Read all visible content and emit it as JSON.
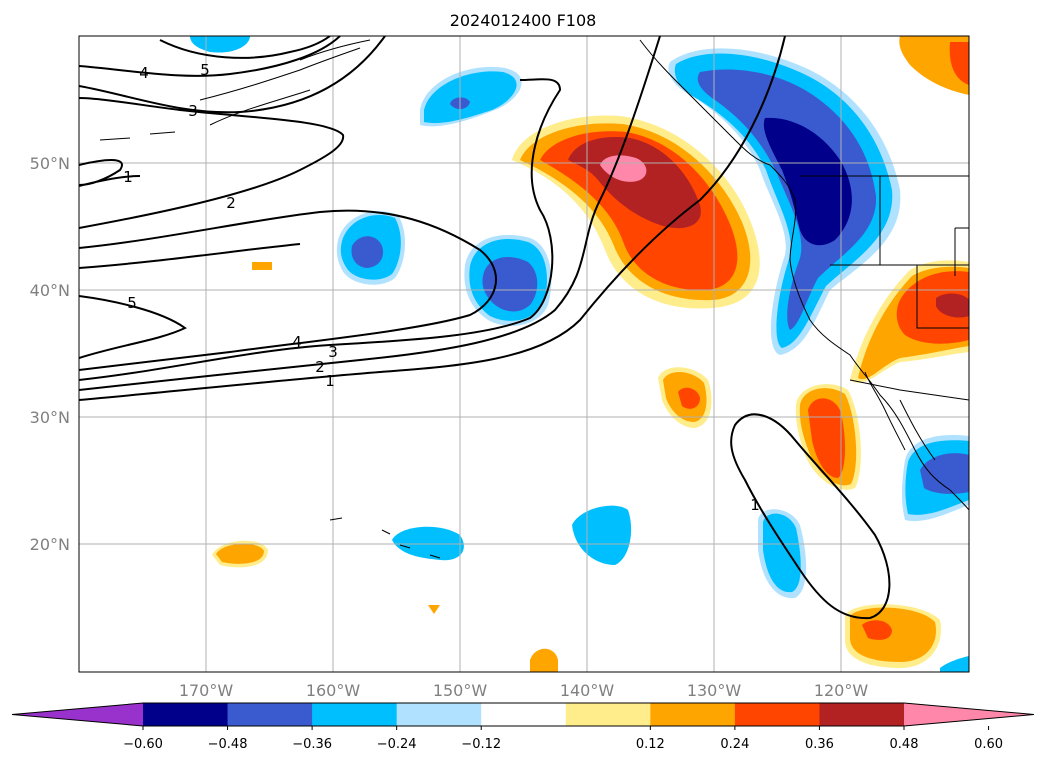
{
  "title": "2024012400 F108",
  "lon_labels": [
    "170°W",
    "160°W",
    "150°W",
    "140°W",
    "130°W",
    "120°W"
  ],
  "lat_labels": [
    "50°N",
    "40°N",
    "30°N",
    "20°N"
  ],
  "lon_values": [
    -170,
    -160,
    -150,
    -140,
    -130,
    -120
  ],
  "lat_values": [
    50,
    40,
    30,
    20
  ],
  "map_extent": {
    "lon_min": -180,
    "lon_max": -110,
    "lat_min": 10,
    "lat_max": 60
  },
  "colorbar": {
    "ticks": [
      "−0.60",
      "−0.48",
      "−0.36",
      "−0.24",
      "−0.12",
      "0.12",
      "0.24",
      "0.36",
      "0.48",
      "0.60"
    ],
    "colors": [
      "#9932cc",
      "#00008b",
      "#3a5bd0",
      "#00bfff",
      "#b0e2ff",
      "#ffffff",
      "#ffec8b",
      "#ffa500",
      "#ff4500",
      "#b22222",
      "#ff88aa"
    ],
    "extend": "both"
  },
  "contour_labels": [
    "4",
    "5",
    "3",
    "1",
    "2",
    "5",
    "4",
    "3",
    "2",
    "1",
    "1"
  ],
  "colors": {
    "land_line": "#000000",
    "grid": "#b0b0b0",
    "contour": "#000000"
  }
}
